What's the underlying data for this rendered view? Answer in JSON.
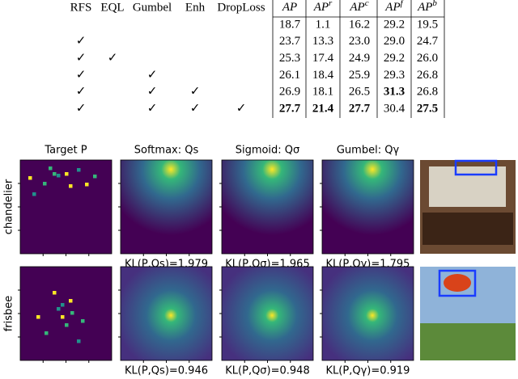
{
  "table": {
    "methods": [
      "RFS",
      "EQL",
      "Gumbel",
      "Enh",
      "DropLoss"
    ],
    "metrics": [
      {
        "base": "AP"
      },
      {
        "base": "AP",
        "sup": "r"
      },
      {
        "base": "AP",
        "sup": "c"
      },
      {
        "base": "AP",
        "sup": "f"
      },
      {
        "base": "AP",
        "sup": "b"
      }
    ],
    "rows": [
      {
        "checks": [
          null,
          null,
          null,
          null,
          null
        ],
        "values": [
          "18.7",
          "1.1",
          "16.2",
          "29.2",
          "19.5"
        ],
        "bold": []
      },
      {
        "checks": [
          "✓",
          null,
          null,
          null,
          null
        ],
        "values": [
          "23.7",
          "13.3",
          "23.0",
          "29.0",
          "24.7"
        ],
        "bold": []
      },
      {
        "checks": [
          "✓",
          "✓",
          null,
          null,
          null
        ],
        "values": [
          "25.3",
          "17.4",
          "24.9",
          "29.2",
          "26.0"
        ],
        "bold": []
      },
      {
        "checks": [
          "✓",
          null,
          "✓",
          null,
          null
        ],
        "values": [
          "26.1",
          "18.4",
          "25.9",
          "29.3",
          "26.8"
        ],
        "bold": []
      },
      {
        "checks": [
          "✓",
          null,
          "✓",
          "✓",
          null
        ],
        "values": [
          "26.9",
          "18.1",
          "26.5",
          "31.3",
          "26.8"
        ],
        "bold": [
          3
        ]
      },
      {
        "checks": [
          "✓",
          null,
          "✓",
          "✓",
          "✓"
        ],
        "values": [
          "27.7",
          "21.4",
          "27.7",
          "30.4",
          "27.5"
        ],
        "bold": [
          0,
          1,
          2,
          4
        ]
      }
    ]
  },
  "figure": {
    "columns": [
      "Target P",
      "Softmax: Qs",
      "Sigmoid: Qσ",
      "Gumbel: Qγ"
    ],
    "rows": [
      {
        "label": "chandelier",
        "kl": [
          "KL(P,Qs)=1.979",
          "KL(P,Qσ)=1.965",
          "KL(P,Qγ)=1.795"
        ]
      },
      {
        "label": "frisbee",
        "kl": [
          "KL(P,Qs)=0.946",
          "KL(P,Qσ)=0.948",
          "KL(P,Qγ)=0.919"
        ]
      }
    ]
  }
}
